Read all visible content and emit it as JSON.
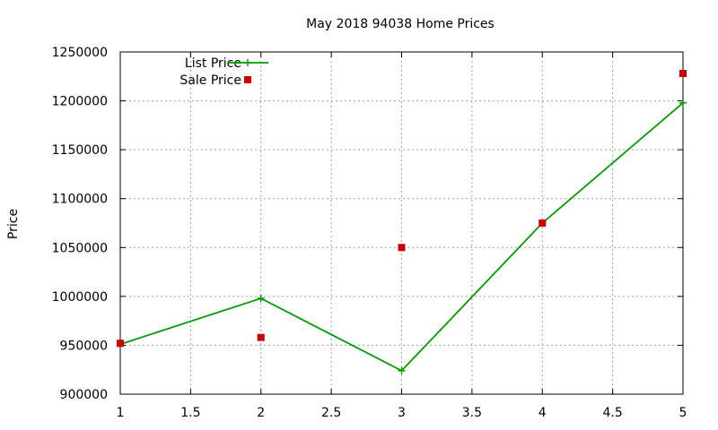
{
  "chart_data": {
    "type": "line",
    "title": "May 2018 94038 Home Prices",
    "xlabel": "",
    "ylabel": "Price",
    "xlim": [
      1,
      5
    ],
    "ylim": [
      900000,
      1250000
    ],
    "x_ticks": [
      "1",
      "1.5",
      "2",
      "2.5",
      "3",
      "3.5",
      "4",
      "4.5",
      "5"
    ],
    "x_tick_values": [
      1,
      1.5,
      2,
      2.5,
      3,
      3.5,
      4,
      4.5,
      5
    ],
    "y_ticks": [
      "900000",
      "950000",
      "1000000",
      "1050000",
      "1100000",
      "1150000",
      "1200000",
      "1250000"
    ],
    "y_tick_values": [
      900000,
      950000,
      1000000,
      1050000,
      1100000,
      1150000,
      1200000,
      1250000
    ],
    "grid": true,
    "legend_position": "top-left",
    "series": [
      {
        "name": "List Price",
        "style": "line-with-plus-markers",
        "color": "#009e00",
        "x": [
          1,
          2,
          3,
          4,
          5
        ],
        "y": [
          951000,
          998000,
          924000,
          1075000,
          1198000
        ]
      },
      {
        "name": "Sale Price",
        "style": "square-markers",
        "color": "#cc0000",
        "x": [
          1,
          2,
          3,
          4,
          5
        ],
        "y": [
          952000,
          958000,
          1050000,
          1075000,
          1228000
        ]
      }
    ]
  }
}
